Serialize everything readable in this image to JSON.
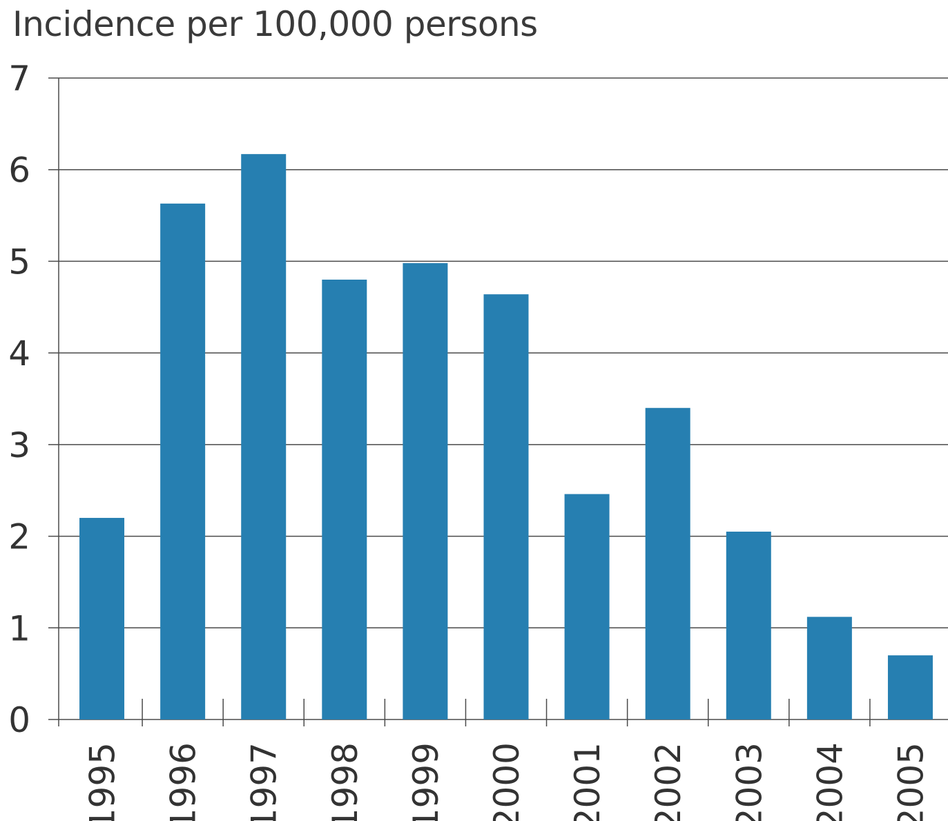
{
  "chart_data": {
    "type": "bar",
    "ylabel": "Incidence per 100,000 persons",
    "xlabel": "",
    "categories": [
      "1995",
      "1996",
      "1997",
      "1998",
      "1999",
      "2000",
      "2001",
      "2002",
      "2003",
      "2004",
      "2005"
    ],
    "values": [
      2.2,
      5.63,
      6.17,
      4.8,
      4.98,
      4.64,
      2.46,
      3.4,
      2.05,
      1.12,
      0.7
    ],
    "ylim": [
      0,
      7
    ],
    "yticks": [
      "0",
      "1",
      "2",
      "3",
      "4",
      "5",
      "6",
      "7"
    ],
    "grid": true,
    "colors": {
      "bar": "#267fb1",
      "grid": "#4a4a4a"
    }
  }
}
